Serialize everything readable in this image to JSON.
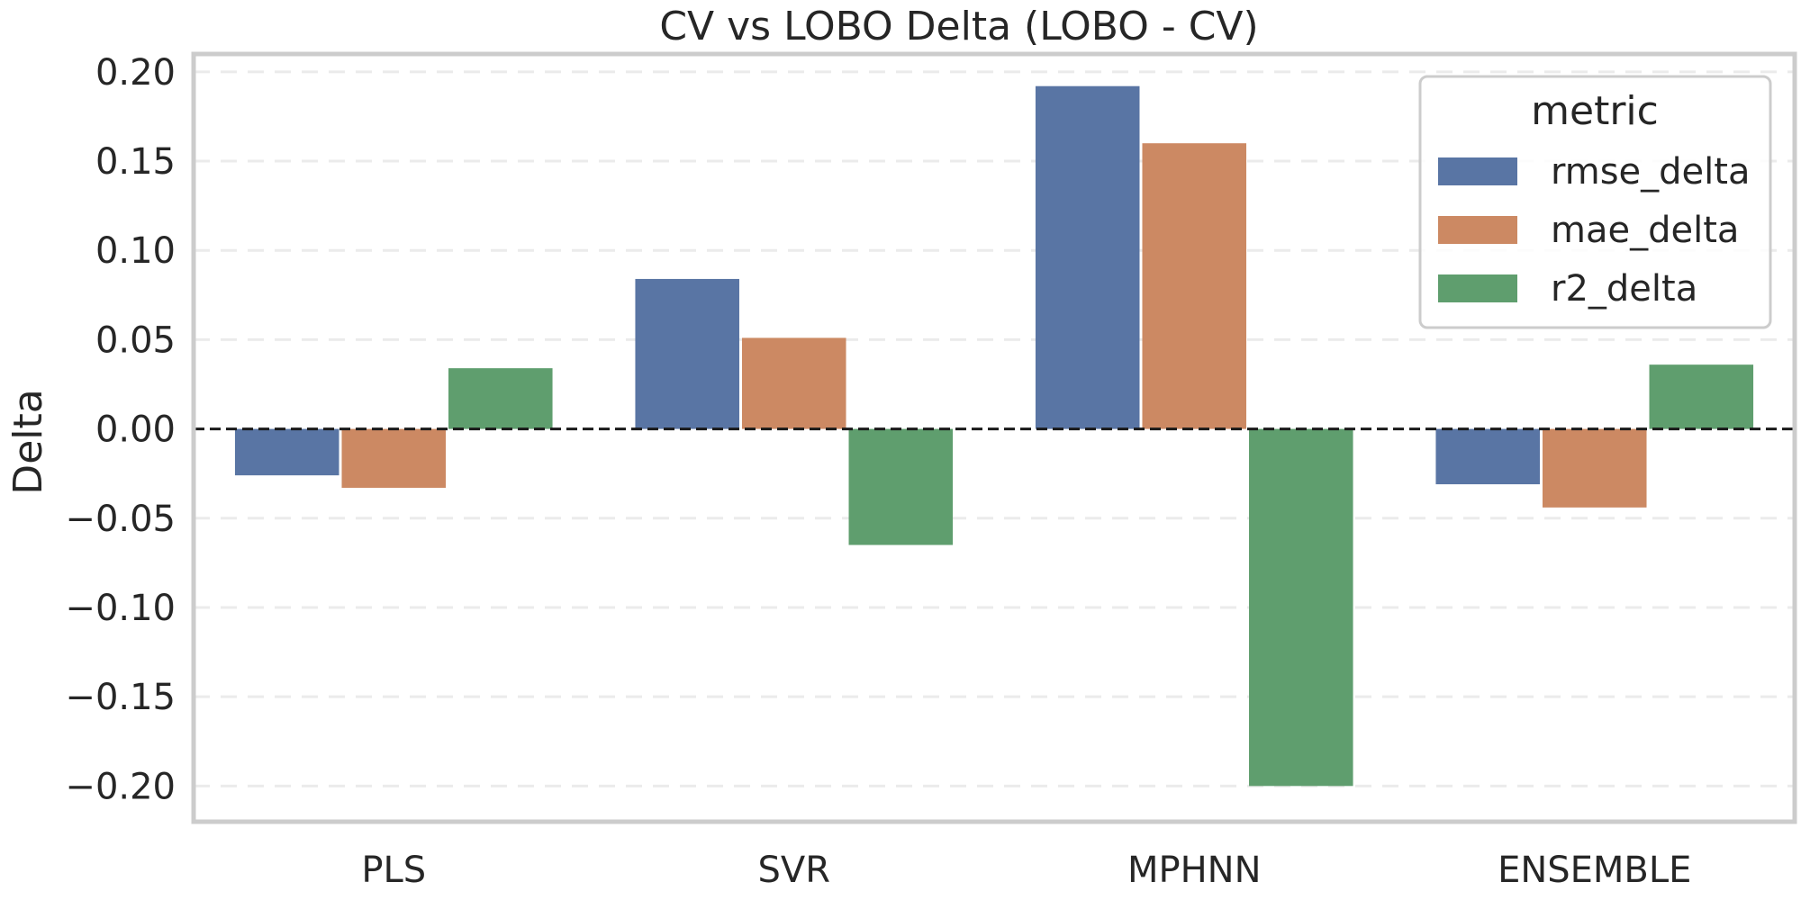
{
  "chart_data": {
    "type": "bar",
    "title": "CV vs LOBO Delta (LOBO - CV)",
    "xlabel": "",
    "ylabel": "Delta",
    "categories": [
      "PLS",
      "SVR",
      "MPHNN",
      "ENSEMBLE"
    ],
    "series": [
      {
        "name": "rmse_delta",
        "color": "#5975a4",
        "values": [
          -0.026,
          0.084,
          0.192,
          -0.031
        ]
      },
      {
        "name": "mae_delta",
        "color": "#cc8963",
        "values": [
          -0.033,
          0.051,
          0.16,
          -0.044
        ]
      },
      {
        "name": "r2_delta",
        "color": "#5f9e6e",
        "values": [
          0.034,
          -0.065,
          -0.2,
          0.036
        ]
      }
    ],
    "ylim": [
      -0.22,
      0.21
    ],
    "yticks": [
      -0.2,
      -0.15,
      -0.1,
      -0.05,
      0.0,
      0.05,
      0.1,
      0.15,
      0.2
    ],
    "ytick_labels": [
      "−0.20",
      "−0.15",
      "−0.10",
      "−0.05",
      "0.00",
      "0.05",
      "0.10",
      "0.15",
      "0.20"
    ],
    "grid": "horizontal-dashed",
    "zero_line": "dashed-black",
    "legend": {
      "title": "metric",
      "placement": "top-right"
    }
  }
}
